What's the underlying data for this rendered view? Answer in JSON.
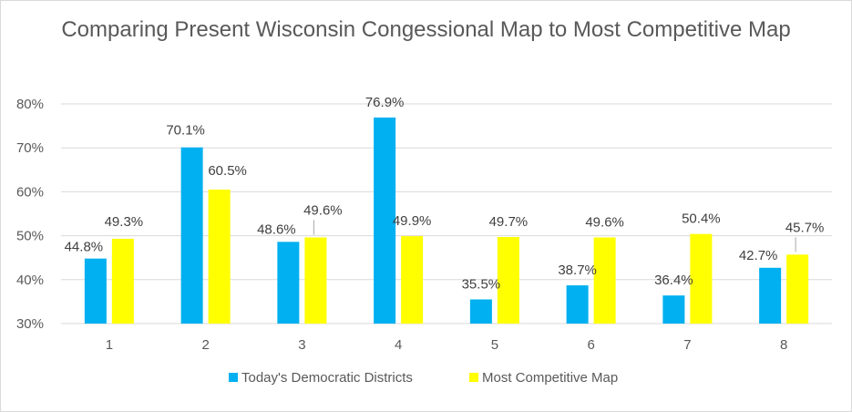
{
  "chart_data": {
    "type": "bar",
    "title": "Comparing Present Wisconsin Congessional Map to Most Competitive Map",
    "categories": [
      "1",
      "2",
      "3",
      "4",
      "5",
      "6",
      "7",
      "8"
    ],
    "series": [
      {
        "name": "Today's Democratic Districts",
        "color": "#00b0f0",
        "values": [
          44.8,
          70.1,
          48.6,
          76.9,
          35.5,
          38.7,
          36.4,
          42.7
        ],
        "labels": [
          "44.8%",
          "70.1%",
          "48.6%",
          "76.9%",
          "35.5%",
          "38.7%",
          "36.4%",
          "42.7%"
        ]
      },
      {
        "name": "Most Competitive Map",
        "color": "#ffff00",
        "values": [
          49.3,
          60.5,
          49.6,
          49.9,
          49.7,
          49.6,
          50.4,
          45.7
        ],
        "labels": [
          "49.3%",
          "60.5%",
          "49.6%",
          "49.9%",
          "49.7%",
          "49.6%",
          "50.4%",
          "45.7%"
        ]
      }
    ],
    "yticks": [
      "30%",
      "40%",
      "50%",
      "60%",
      "70%",
      "80%"
    ],
    "ylim": [
      30,
      80
    ],
    "grid": true,
    "legend_position": "bottom"
  }
}
